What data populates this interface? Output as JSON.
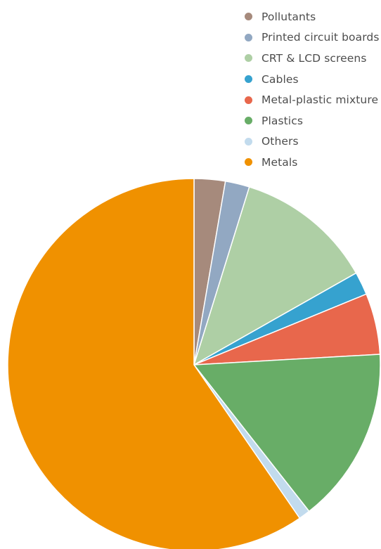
{
  "chart_data": {
    "type": "pie",
    "title": "",
    "legend_position": "top-right",
    "start_angle_deg": 0,
    "direction": "clockwise",
    "series": [
      {
        "slices": [
          {
            "label": "Pollutants",
            "value": 2.7,
            "color": "#a68a7c"
          },
          {
            "label": "Printed circuit boards",
            "value": 2.1,
            "color": "#92a8c2"
          },
          {
            "label": "CRT & LCD screens",
            "value": 12.0,
            "color": "#aecfa5"
          },
          {
            "label": "Cables",
            "value": 2.0,
            "color": "#36a2cf"
          },
          {
            "label": "Metal-plastic mixture",
            "value": 5.3,
            "color": "#e8674c"
          },
          {
            "label": "Plastics",
            "value": 15.3,
            "color": "#68ad67"
          },
          {
            "label": "Others",
            "value": 1.0,
            "color": "#c2dbed"
          },
          {
            "label": "Metals",
            "value": 59.6,
            "color": "#f09100"
          }
        ]
      }
    ]
  }
}
